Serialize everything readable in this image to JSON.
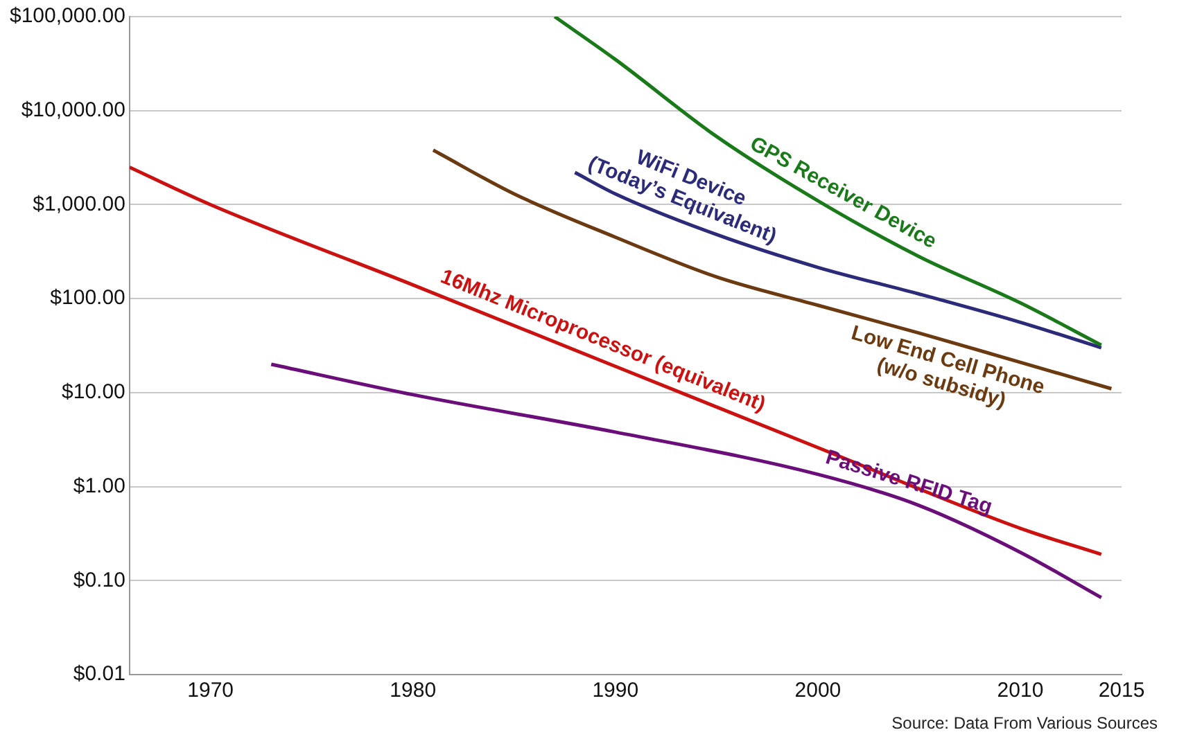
{
  "chart_data": {
    "type": "line",
    "log": "y",
    "grid": "y",
    "legend": false,
    "marker": "none",
    "line_style": "solid",
    "xlim": [
      1966,
      2015
    ],
    "xticks": [
      1970,
      1980,
      1990,
      2000,
      2010,
      2015
    ],
    "ylim": [
      0.01,
      100000
    ],
    "yticks": [
      {
        "value": 0.01,
        "label": "$0.01"
      },
      {
        "value": 0.1,
        "label": "$0.10"
      },
      {
        "value": 1,
        "label": "$1.00"
      },
      {
        "value": 10,
        "label": "$10.00"
      },
      {
        "value": 100,
        "label": "$100.00"
      },
      {
        "value": 1000,
        "label": "$1,000.00"
      },
      {
        "value": 10000,
        "label": "$10,000.00"
      },
      {
        "value": 100000,
        "label": "$100,000.00"
      }
    ],
    "series": [
      {
        "name": "GPS Receiver Device",
        "color": "#1a7a1a",
        "x": [
          1987,
          1990,
          1995,
          2000,
          2005,
          2010,
          2014
        ],
        "values": [
          100000,
          35000,
          5300,
          1100,
          280,
          90,
          32
        ]
      },
      {
        "name": "WiFi Device (Today’s Equivalent)",
        "color": "#2b2b7a",
        "x": [
          1988,
          1990,
          1995,
          2000,
          2005,
          2010,
          2014
        ],
        "values": [
          2200,
          1300,
          480,
          215,
          112,
          56,
          30
        ]
      },
      {
        "name": "Low End Cell Phone (w/o subsidy)",
        "color": "#6b3a10",
        "x": [
          1981,
          1985,
          1990,
          1995,
          2000,
          2005,
          2010,
          2014.5
        ],
        "values": [
          3800,
          1300,
          450,
          170,
          85,
          43,
          21,
          11
        ]
      },
      {
        "name": "16Mhz Microprocessor (equivalent)",
        "color": "#cc1111",
        "x": [
          1966,
          1970,
          1980,
          1990,
          2000,
          2010,
          2014
        ],
        "values": [
          2500,
          1000,
          140,
          19,
          2.6,
          0.36,
          0.19
        ]
      },
      {
        "name": "Passive RFID Tag",
        "color": "#6a0f7a",
        "x": [
          1973,
          1980,
          1990,
          2000,
          2005,
          2010,
          2014
        ],
        "values": [
          20,
          9.5,
          3.8,
          1.35,
          0.63,
          0.2,
          0.066
        ]
      }
    ],
    "annotations": [
      "Source: Data From Various Sources"
    ]
  }
}
